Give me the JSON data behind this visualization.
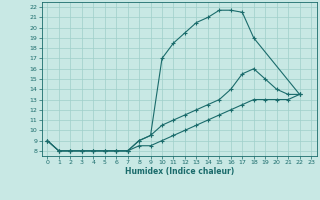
{
  "xlabel": "Humidex (Indice chaleur)",
  "xlim": [
    -0.5,
    23.5
  ],
  "ylim": [
    7.5,
    22.5
  ],
  "xticks": [
    0,
    1,
    2,
    3,
    4,
    5,
    6,
    7,
    8,
    9,
    10,
    11,
    12,
    13,
    14,
    15,
    16,
    17,
    18,
    19,
    20,
    21,
    22,
    23
  ],
  "yticks": [
    8,
    9,
    10,
    11,
    12,
    13,
    14,
    15,
    16,
    17,
    18,
    19,
    20,
    21,
    22
  ],
  "bg_color": "#c8e8e4",
  "line_color": "#1a6b6b",
  "grid_color": "#9fcfca",
  "line1_x": [
    0,
    1,
    2,
    3,
    4,
    5,
    6,
    7,
    8,
    9,
    10,
    11,
    12,
    13,
    14,
    15,
    16,
    17,
    18,
    22
  ],
  "line1_y": [
    9,
    8,
    8,
    8,
    8,
    8,
    8,
    8,
    9,
    9.5,
    17,
    18.5,
    19.5,
    20.5,
    21,
    21.7,
    21.7,
    21.5,
    19,
    13.5
  ],
  "line2_x": [
    0,
    1,
    2,
    3,
    4,
    5,
    6,
    7,
    8,
    9,
    10,
    11,
    12,
    13,
    14,
    15,
    16,
    17,
    18,
    19,
    20,
    21,
    22
  ],
  "line2_y": [
    9,
    8,
    8,
    8,
    8,
    8,
    8,
    8,
    9,
    9.5,
    10.5,
    11,
    11.5,
    12,
    12.5,
    13,
    14,
    15.5,
    16,
    15,
    14,
    13.5,
    13.5
  ],
  "line3_x": [
    0,
    1,
    2,
    3,
    4,
    5,
    6,
    7,
    8,
    9,
    10,
    11,
    12,
    13,
    14,
    15,
    16,
    17,
    18,
    19,
    20,
    21,
    22
  ],
  "line3_y": [
    9,
    8,
    8,
    8,
    8,
    8,
    8,
    8,
    8.5,
    8.5,
    9,
    9.5,
    10,
    10.5,
    11,
    11.5,
    12,
    12.5,
    13,
    13,
    13,
    13,
    13.5
  ]
}
